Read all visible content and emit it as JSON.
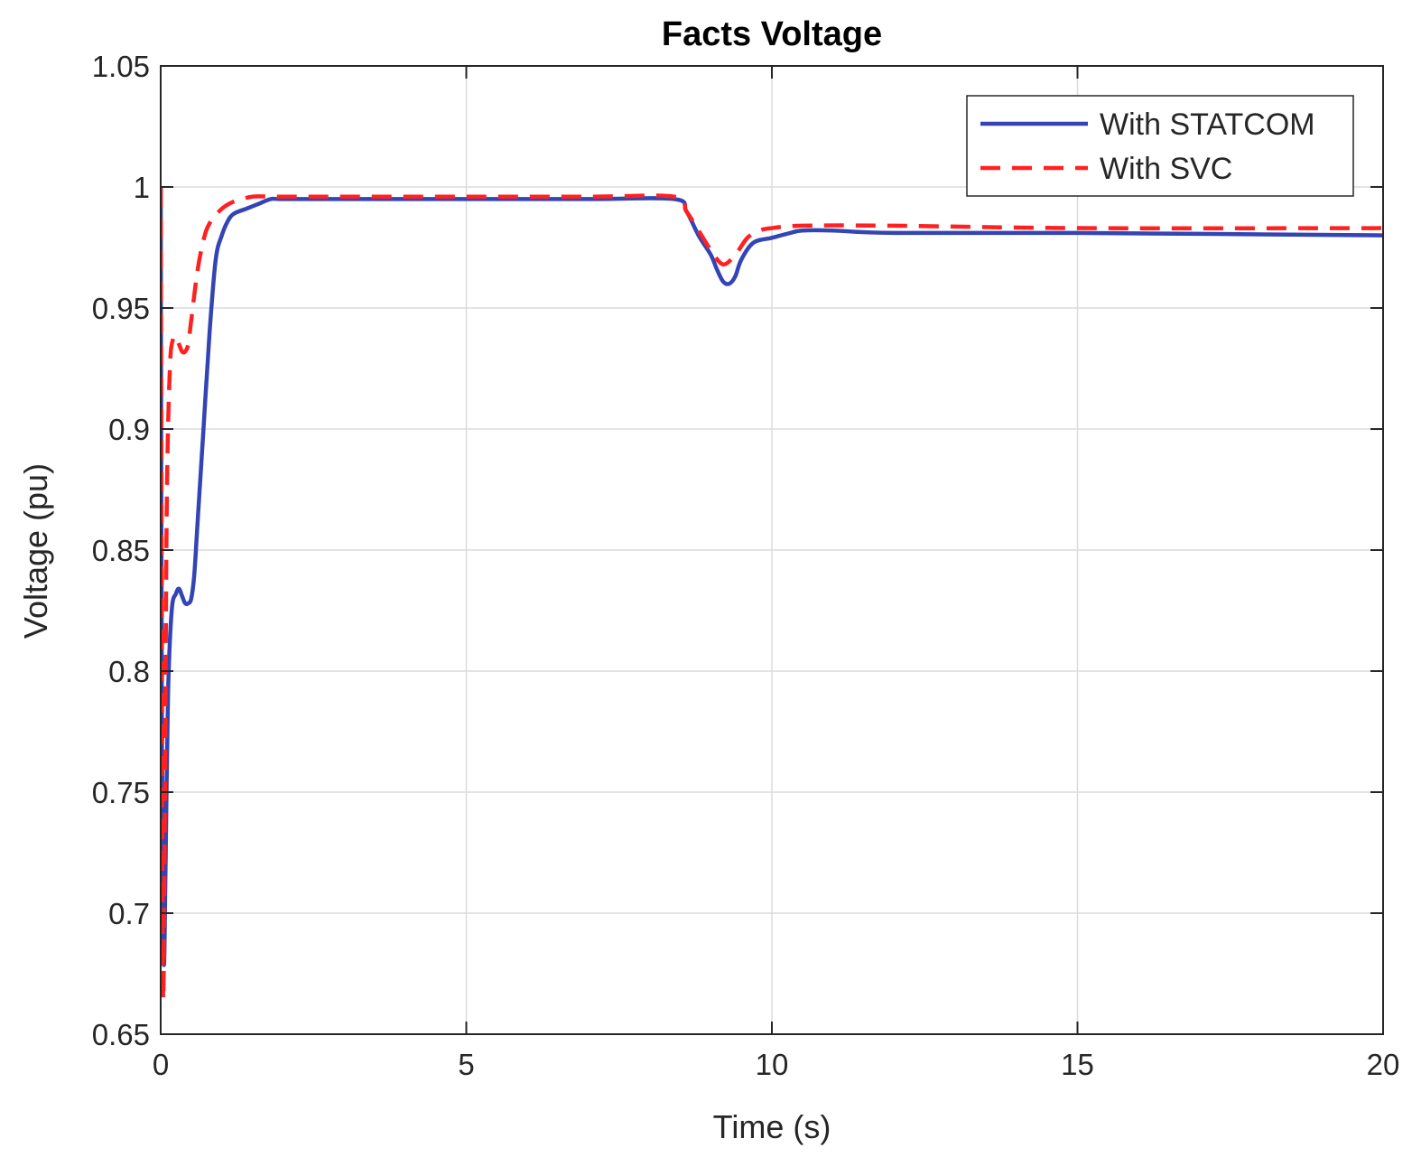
{
  "chart_data": {
    "type": "line",
    "title": "Facts Voltage",
    "xlabel": "Time (s)",
    "ylabel": "Voltage (pu)",
    "xlim": [
      0,
      20
    ],
    "ylim": [
      0.65,
      1.05
    ],
    "xticks": [
      0,
      5,
      10,
      15,
      20
    ],
    "xtick_labels": [
      "0",
      "5",
      "10",
      "15",
      "20"
    ],
    "yticks": [
      0.65,
      0.7,
      0.75,
      0.8,
      0.85,
      0.9,
      0.95,
      1,
      1.05
    ],
    "ytick_labels": [
      "0.65",
      "0.7",
      "0.75",
      "0.8",
      "0.85",
      "0.9",
      "0.95",
      "1",
      "1.05"
    ],
    "grid": true,
    "legend_position": "top-right",
    "series": [
      {
        "name": "With STATCOM",
        "color": "#3344b5",
        "style": "solid",
        "x": [
          0,
          0.02,
          0.05,
          0.08,
          0.12,
          0.18,
          0.25,
          0.3,
          0.35,
          0.4,
          0.45,
          0.5,
          0.55,
          0.6,
          0.7,
          0.8,
          0.9,
          1.0,
          1.1,
          1.2,
          1.4,
          1.6,
          1.8,
          2.0,
          3.0,
          5.0,
          7.0,
          8.4,
          8.6,
          8.8,
          9.0,
          9.1,
          9.2,
          9.3,
          9.4,
          9.5,
          9.7,
          10.0,
          10.3,
          10.5,
          11.0,
          12.0,
          15.0,
          20.0
        ],
        "values": [
          1.0,
          0.77,
          0.68,
          0.72,
          0.79,
          0.825,
          0.832,
          0.834,
          0.831,
          0.828,
          0.828,
          0.83,
          0.84,
          0.86,
          0.9,
          0.94,
          0.97,
          0.98,
          0.986,
          0.989,
          0.991,
          0.993,
          0.995,
          0.995,
          0.995,
          0.995,
          0.995,
          0.995,
          0.99,
          0.98,
          0.972,
          0.966,
          0.961,
          0.96,
          0.963,
          0.97,
          0.977,
          0.979,
          0.981,
          0.982,
          0.982,
          0.981,
          0.981,
          0.98
        ]
      },
      {
        "name": "With SVC",
        "color": "#ff2020",
        "style": "dashed",
        "x": [
          0,
          0.02,
          0.04,
          0.07,
          0.1,
          0.15,
          0.2,
          0.25,
          0.3,
          0.35,
          0.4,
          0.45,
          0.5,
          0.6,
          0.7,
          0.8,
          1.0,
          1.2,
          1.5,
          1.8,
          2.0,
          3.0,
          5.0,
          7.0,
          8.4,
          8.6,
          8.8,
          9.0,
          9.2,
          9.4,
          9.6,
          9.8,
          10.0,
          10.5,
          12.0,
          15.0,
          20.0
        ],
        "values": [
          1.0,
          0.8,
          0.665,
          0.75,
          0.87,
          0.925,
          0.937,
          0.938,
          0.935,
          0.932,
          0.932,
          0.935,
          0.945,
          0.965,
          0.978,
          0.985,
          0.991,
          0.994,
          0.996,
          0.996,
          0.996,
          0.996,
          0.996,
          0.996,
          0.996,
          0.99,
          0.982,
          0.974,
          0.968,
          0.972,
          0.979,
          0.982,
          0.983,
          0.984,
          0.984,
          0.983,
          0.983
        ]
      }
    ]
  }
}
